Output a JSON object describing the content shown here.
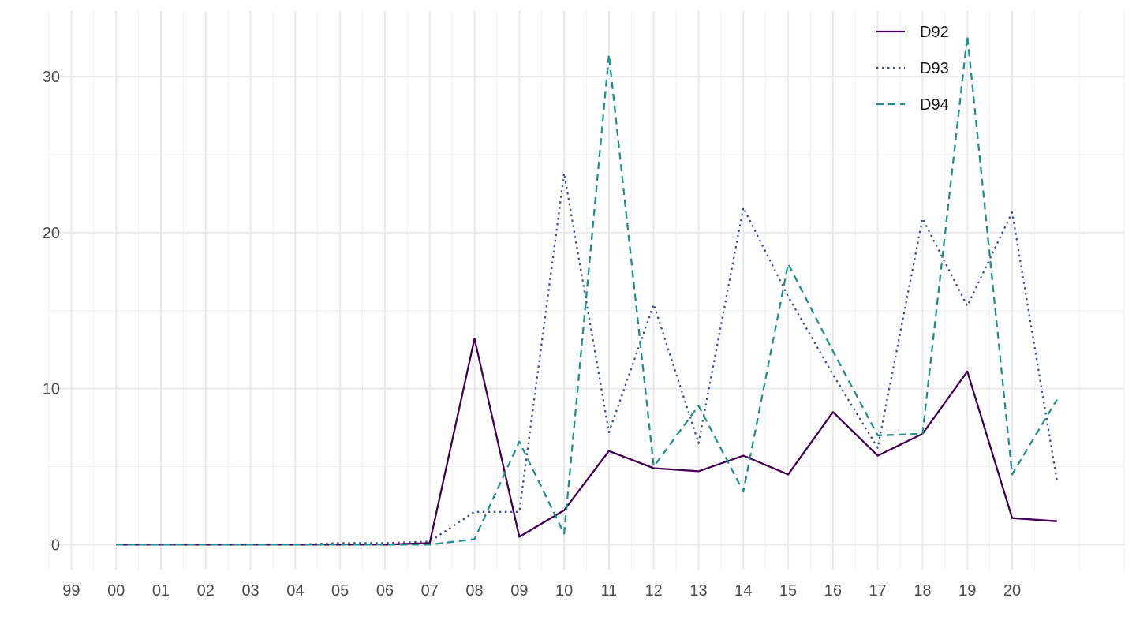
{
  "chart_data": {
    "type": "line",
    "title": "",
    "xlabel": "",
    "ylabel": "",
    "x": [
      2000,
      2001,
      2002,
      2003,
      2004,
      2005,
      2006,
      2007,
      2008,
      2009,
      2010,
      2011,
      2012,
      2013,
      2014,
      2015,
      2016,
      2017,
      2018,
      2019,
      2020,
      2021
    ],
    "x_tick_values": [
      1999,
      2000,
      2001,
      2002,
      2003,
      2004,
      2005,
      2006,
      2007,
      2008,
      2009,
      2010,
      2011,
      2012,
      2013,
      2014,
      2015,
      2016,
      2017,
      2018,
      2019,
      2020
    ],
    "x_tick_labels": [
      "99",
      "00",
      "01",
      "02",
      "03",
      "04",
      "05",
      "06",
      "07",
      "08",
      "09",
      "10",
      "11",
      "12",
      "13",
      "14",
      "15",
      "16",
      "17",
      "18",
      "19",
      "20"
    ],
    "xlim": [
      1998.5,
      2022.5
    ],
    "ylim": [
      -1.6,
      34.2
    ],
    "y_ticks": [
      0,
      10,
      20,
      30
    ],
    "y_tick_labels": [
      "0",
      "10",
      "20",
      "30"
    ],
    "grid": true,
    "legend_position": "top-right",
    "series": [
      {
        "name": "D92",
        "color": "#440154",
        "dash": "solid",
        "values": [
          0,
          0,
          0,
          0,
          0,
          0,
          0,
          0.1,
          13.2,
          0.5,
          2.2,
          6.0,
          4.9,
          4.7,
          5.7,
          4.5,
          8.5,
          5.7,
          7.1,
          11.1,
          1.7,
          1.5
        ]
      },
      {
        "name": "D93",
        "color": "#3b528b",
        "dash": "dotted",
        "values": [
          0,
          0,
          0,
          0,
          0,
          0.1,
          0.1,
          0.2,
          2.1,
          2.1,
          23.8,
          7.2,
          15.4,
          6.5,
          21.6,
          15.9,
          10.9,
          6.2,
          20.9,
          15.3,
          21.3,
          4.1
        ]
      },
      {
        "name": "D94",
        "color": "#21908c",
        "dash": "dashed",
        "values": [
          0,
          0,
          0,
          0,
          0,
          0,
          0,
          0,
          0.35,
          6.6,
          0.7,
          31.4,
          5.0,
          8.9,
          3.4,
          18.0,
          12.4,
          7.0,
          7.1,
          32.6,
          4.5,
          9.3
        ]
      }
    ]
  }
}
